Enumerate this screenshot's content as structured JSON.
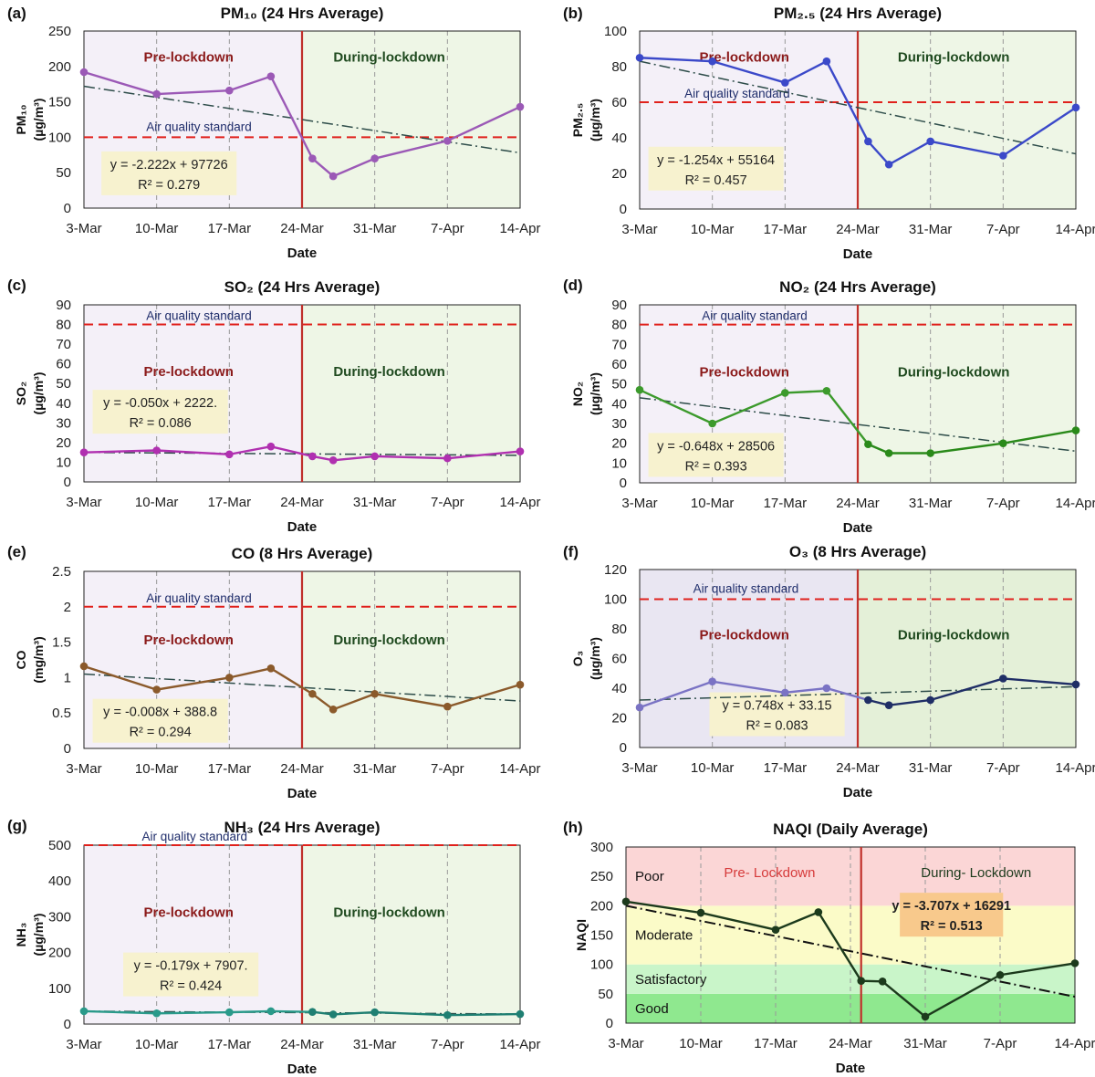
{
  "figure": {
    "colors": {
      "pre_bg": "#f4f0f8",
      "during_bg": "#eef6e6",
      "standard_line": "#e0211c",
      "divider": "#c0302b",
      "trend": "#2d4c49",
      "eq_box": "#f7f2cf",
      "dashed_grid": "#999999"
    }
  },
  "charts": [
    {
      "panel_label": "(a)",
      "chart_data": {
        "type": "line",
        "title": "PM₁₀ (24 Hrs Average)",
        "ylabel": "PM10 (µg/m³)",
        "ylabel_line1": "PM₁₀",
        "ylabel_line2": "(µg/m³)",
        "xlabel": "Date",
        "ylim": [
          0,
          250
        ],
        "yticks": [
          0,
          50,
          100,
          150,
          200,
          250
        ],
        "xlim": [
          0,
          42
        ],
        "xticks": [
          0,
          7,
          14,
          21,
          28,
          35,
          42
        ],
        "xtick_labels": [
          "3-Mar",
          "10-Mar",
          "17-Mar",
          "24-Mar",
          "31-Mar",
          "7-Apr",
          "14-Apr"
        ],
        "lockdown_x": 21,
        "pre_label": "Pre-lockdown",
        "during_label": "During-lockdown",
        "standard": 100,
        "standard_label": "Air quality standard",
        "standard_label_pos": "below",
        "equation": "y = -2.222x + 97726",
        "r2": "R² = 0.279",
        "trend": [
          [
            0,
            172
          ],
          [
            42,
            78
          ]
        ],
        "color": "#9b59b6",
        "color_post": "#9b59b6",
        "x": [
          0,
          7,
          14,
          18,
          22,
          24,
          28,
          35,
          42
        ],
        "values": [
          192,
          161,
          166,
          186,
          70,
          45,
          70,
          95,
          143
        ]
      }
    },
    {
      "panel_label": "(b)",
      "chart_data": {
        "type": "line",
        "title": "PM₂.₅ (24 Hrs Average)",
        "ylabel": "PM2.5 (µg/m³)",
        "ylabel_line1": "PM₂.₅",
        "ylabel_line2": "(µg/m³)",
        "xlabel": "Date",
        "ylim": [
          0,
          100
        ],
        "yticks": [
          0,
          20,
          40,
          60,
          80,
          100
        ],
        "xlim": [
          0,
          42
        ],
        "xticks": [
          0,
          7,
          14,
          21,
          28,
          35,
          42
        ],
        "xtick_labels": [
          "3-Mar",
          "10-Mar",
          "17-Mar",
          "24-Mar",
          "31-Mar",
          "7-Apr",
          "14-Apr"
        ],
        "lockdown_x": 21,
        "pre_label": "Pre-lockdown",
        "during_label": "During-lockdown",
        "standard": 60,
        "standard_label": "Air quality standard",
        "standard_label_pos": "above",
        "equation": "y = -1.254x + 55164",
        "r2": "R² = 0.457",
        "trend": [
          [
            0,
            83
          ],
          [
            42,
            31
          ]
        ],
        "color": "#3b49c9",
        "color_post": "#3b49c9",
        "x": [
          0,
          7,
          14,
          18,
          22,
          24,
          28,
          35,
          42
        ],
        "values": [
          85,
          83,
          71,
          83,
          38,
          25,
          38,
          30,
          57
        ]
      }
    },
    {
      "panel_label": "(c)",
      "chart_data": {
        "type": "line",
        "title": "SO₂ (24 Hrs Average)",
        "ylabel": "SO2 (µg/m³)",
        "ylabel_line1": "SO₂",
        "ylabel_line2": "(µg/m³)",
        "xlabel": "Date",
        "ylim": [
          0,
          90
        ],
        "yticks": [
          0,
          10,
          20,
          30,
          40,
          50,
          60,
          70,
          80,
          90
        ],
        "xlim": [
          0,
          42
        ],
        "xticks": [
          0,
          7,
          14,
          21,
          28,
          35,
          42
        ],
        "xtick_labels": [
          "3-Mar",
          "10-Mar",
          "17-Mar",
          "24-Mar",
          "31-Mar",
          "7-Apr",
          "14-Apr"
        ],
        "lockdown_x": 21,
        "pre_label": "Pre-lockdown",
        "during_label": "During-lockdown",
        "standard": 80,
        "standard_label": "Air quality standard",
        "standard_label_pos": "above",
        "equation": "y = -0.050x + 2222.",
        "r2": "R² = 0.086",
        "trend": [
          [
            0,
            15
          ],
          [
            42,
            13.5
          ]
        ],
        "color": "#b030b0",
        "color_post": "#b030b0",
        "x": [
          0,
          7,
          14,
          18,
          22,
          24,
          28,
          35,
          42
        ],
        "values": [
          15,
          16,
          14,
          18,
          13,
          11,
          13,
          12,
          15.5
        ]
      }
    },
    {
      "panel_label": "(d)",
      "chart_data": {
        "type": "line",
        "title": "NO₂ (24 Hrs Average)",
        "ylabel": "NO2 (µg/m³)",
        "ylabel_line1": "NO₂",
        "ylabel_line2": "(µg/m³)",
        "xlabel": "Date",
        "ylim": [
          0,
          90
        ],
        "yticks": [
          0,
          10,
          20,
          30,
          40,
          50,
          60,
          70,
          80,
          90
        ],
        "xlim": [
          0,
          42
        ],
        "xticks": [
          0,
          7,
          14,
          21,
          28,
          35,
          42
        ],
        "xtick_labels": [
          "3-Mar",
          "10-Mar",
          "17-Mar",
          "24-Mar",
          "31-Mar",
          "7-Apr",
          "14-Apr"
        ],
        "lockdown_x": 21,
        "pre_label": "Pre-lockdown",
        "during_label": "During-lockdown",
        "standard": 80,
        "standard_label": "Air quality standard",
        "standard_label_pos": "above",
        "equation": "y = -0.648x + 28506",
        "r2": "R² = 0.393",
        "trend": [
          [
            0,
            43
          ],
          [
            42,
            16
          ]
        ],
        "color": "#3c9a2c",
        "color_post": "#2a8a1a",
        "x": [
          0,
          7,
          14,
          18,
          22,
          24,
          28,
          35,
          42
        ],
        "values": [
          47,
          30,
          45.5,
          46.5,
          19.5,
          15,
          15,
          20,
          26.5
        ]
      }
    },
    {
      "panel_label": "(e)",
      "chart_data": {
        "type": "line",
        "title": "CO (8 Hrs Average)",
        "ylabel": "CO (mg/m³)",
        "ylabel_line1": "CO",
        "ylabel_line2": "(mg/m³)",
        "xlabel": "Date",
        "ylim": [
          0,
          2.5
        ],
        "yticks": [
          0,
          0.5,
          1,
          1.5,
          2,
          2.5
        ],
        "xlim": [
          0,
          42
        ],
        "xticks": [
          0,
          7,
          14,
          21,
          28,
          35,
          42
        ],
        "xtick_labels": [
          "3-Mar",
          "10-Mar",
          "17-Mar",
          "24-Mar",
          "31-Mar",
          "7-Apr",
          "14-Apr"
        ],
        "lockdown_x": 21,
        "pre_label": "Pre-lockdown",
        "during_label": "During-lockdown",
        "standard": 2,
        "standard_label": "Air quality standard",
        "standard_label_pos": "above",
        "equation": "y = -0.008x + 388.8",
        "r2": "R² = 0.294",
        "trend": [
          [
            0,
            1.05
          ],
          [
            42,
            0.67
          ]
        ],
        "color": "#8b5a2b",
        "color_post": "#8b5a2b",
        "x": [
          0,
          7,
          14,
          18,
          22,
          24,
          28,
          35,
          42
        ],
        "values": [
          1.16,
          0.83,
          1.0,
          1.13,
          0.77,
          0.55,
          0.77,
          0.59,
          0.9
        ]
      }
    },
    {
      "panel_label": "(f)",
      "chart_data": {
        "type": "line",
        "title": "O₃ (8 Hrs Average)",
        "ylabel": "O3 (µg/m³)",
        "ylabel_line1": "O₃",
        "ylabel_line2": "(µg/m³)",
        "xlabel": "Date",
        "ylim": [
          0,
          120
        ],
        "yticks": [
          0,
          20,
          40,
          60,
          80,
          100,
          120
        ],
        "xlim": [
          0,
          42
        ],
        "xticks": [
          0,
          7,
          14,
          21,
          28,
          35,
          42
        ],
        "xtick_labels": [
          "3-Mar",
          "10-Mar",
          "17-Mar",
          "24-Mar",
          "31-Mar",
          "7-Apr",
          "14-Apr"
        ],
        "lockdown_x": 21,
        "pre_label": "Pre-lockdown",
        "during_label": "During-lockdown",
        "standard": 100,
        "standard_label": "Air quality standard",
        "standard_label_pos": "below",
        "equation": "y = 0.748x  + 33.15",
        "r2": "R² = 0.083",
        "trend": [
          [
            0,
            32
          ],
          [
            42,
            41
          ]
        ],
        "color": "#7a73c4",
        "color_post": "#1f2e66",
        "pre_bg": "#e9e6f2",
        "during_bg": "#e4f0d8",
        "x": [
          0,
          7,
          14,
          18,
          22,
          24,
          28,
          35,
          42
        ],
        "values": [
          27,
          44.5,
          37,
          40,
          32,
          28.5,
          32,
          46.5,
          42.5
        ]
      }
    },
    {
      "panel_label": "(g)",
      "chart_data": {
        "type": "line",
        "title": "NH₃ (24 Hrs Average)",
        "ylabel": "NH3 (µg/m³)",
        "ylabel_line1": "NH₃",
        "ylabel_line2": "(µg/m³)",
        "xlabel": "Date",
        "ylim": [
          0,
          500
        ],
        "yticks": [
          0,
          100,
          200,
          300,
          400,
          500
        ],
        "xlim": [
          0,
          42
        ],
        "xticks": [
          0,
          7,
          14,
          21,
          28,
          35,
          42
        ],
        "xtick_labels": [
          "3-Mar",
          "10-Mar",
          "17-Mar",
          "24-Mar",
          "31-Mar",
          "7-Apr",
          "14-Apr"
        ],
        "lockdown_x": 21,
        "pre_label": "Pre-lockdown",
        "during_label": "During-lockdown",
        "standard": 500,
        "standard_label": "Air quality standard",
        "standard_label_pos": "above",
        "equation": "y = -0.179x + 7907.",
        "r2": "R² = 0.424",
        "trend": [
          [
            0,
            36
          ],
          [
            42,
            28
          ]
        ],
        "color": "#2a9a8a",
        "color_post": "#1f7f72",
        "x": [
          0,
          7,
          14,
          18,
          22,
          24,
          28,
          35,
          42
        ],
        "values": [
          36,
          30,
          33,
          36,
          34,
          27,
          33,
          25,
          28
        ]
      }
    },
    {
      "panel_label": "(h)",
      "chart_data": {
        "type": "line",
        "title": "NAQI (Daily Average)",
        "ylabel": "NAQI",
        "ylabel_line1": "NAQI",
        "ylabel_line2": "",
        "xlabel": "Date",
        "ylim": [
          0,
          300
        ],
        "yticks": [
          0,
          50,
          100,
          150,
          200,
          250,
          300
        ],
        "xlim": [
          0,
          42
        ],
        "xticks": [
          0,
          7,
          14,
          21,
          28,
          35,
          42
        ],
        "xtick_labels": [
          "3-Mar",
          "10-Mar",
          "17-Mar",
          "24-Mar",
          "31-Mar",
          "7-Apr",
          "14-Apr"
        ],
        "lockdown_x": 22,
        "pre_label": "Pre- Lockdown",
        "during_label": "During- Lockdown",
        "equation": "y = -3.707x + 16291",
        "r2": "R² = 0.513",
        "trend": [
          [
            0,
            200
          ],
          [
            42,
            45
          ]
        ],
        "color": "#1c3a1c",
        "color_post": "#1c3a1c",
        "bands": [
          {
            "label": "Good",
            "from": 0,
            "to": 50,
            "color": "#8fe88f"
          },
          {
            "label": "Satisfactory",
            "from": 50,
            "to": 100,
            "color": "#c9f5c9"
          },
          {
            "label": "Moderate",
            "from": 100,
            "to": 200,
            "color": "#fbfbc8"
          },
          {
            "label": "Poor",
            "from": 200,
            "to": 300,
            "color": "#fbd6d6"
          }
        ],
        "x": [
          0,
          7,
          14,
          18,
          22,
          24,
          28,
          35,
          42
        ],
        "values": [
          207,
          188,
          159,
          189,
          72,
          71,
          11,
          82,
          102
        ]
      }
    }
  ]
}
